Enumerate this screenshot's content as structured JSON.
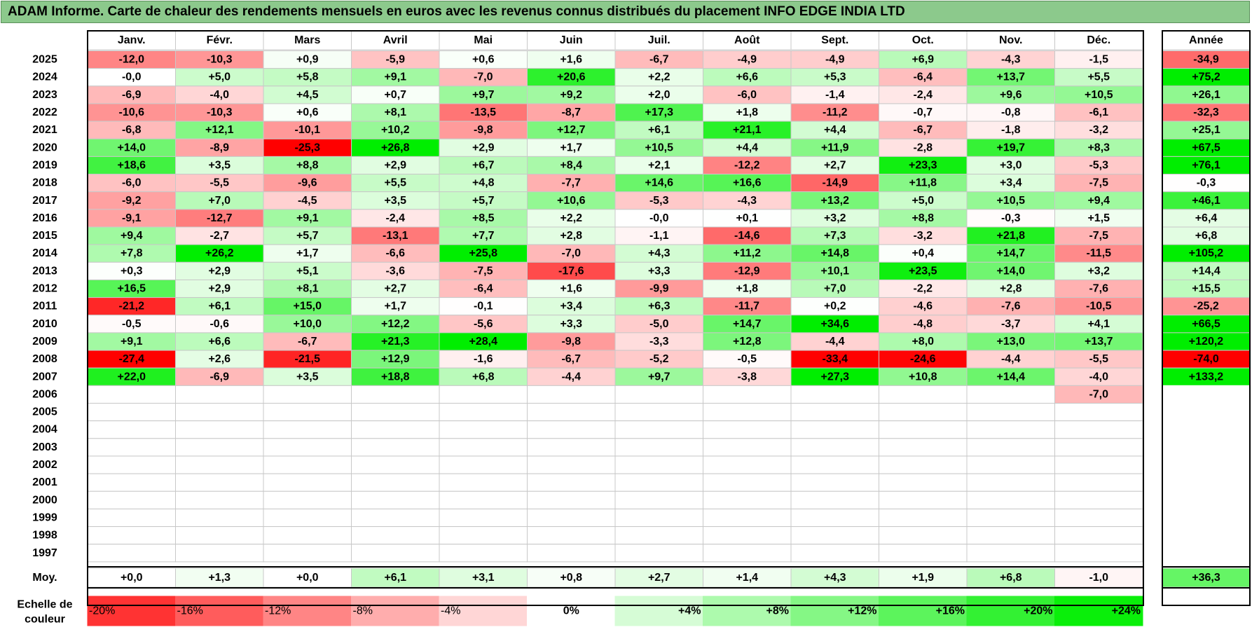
{
  "title": "ADAM Informe. Carte de chaleur des rendements mensuels en euros avec les revenus connus distribués du placement INFO EDGE INDIA LTD",
  "colors": {
    "title_bg": "#8cc98c",
    "red": "#ff0000",
    "green": "#00ee00",
    "neutral": "#ffffff"
  },
  "chart_data": {
    "type": "heatmap",
    "months": [
      "Janv.",
      "Févr.",
      "Mars",
      "Avril",
      "Mai",
      "Juin",
      "Juil.",
      "Août",
      "Sept.",
      "Oct.",
      "Nov.",
      "Déc."
    ],
    "year_header": "Année",
    "years": [
      "2025",
      "2024",
      "2023",
      "2022",
      "2021",
      "2020",
      "2019",
      "2018",
      "2017",
      "2016",
      "2015",
      "2014",
      "2013",
      "2012",
      "2011",
      "2010",
      "2009",
      "2008",
      "2007",
      "2006",
      "2005",
      "2004",
      "2003",
      "2002",
      "2001",
      "2000",
      "1999",
      "1998",
      "1997"
    ],
    "values": [
      [
        "-12,0",
        "-10,3",
        "+0,9",
        "-5,9",
        "+0,6",
        "+1,6",
        "-6,7",
        "-4,9",
        "-4,9",
        "+6,9",
        "-4,3",
        "-1,5"
      ],
      [
        "-0,0",
        "+5,0",
        "+5,8",
        "+9,1",
        "-7,0",
        "+20,6",
        "+2,2",
        "+6,6",
        "+5,3",
        "-6,4",
        "+13,7",
        "+5,5"
      ],
      [
        "-6,9",
        "-4,0",
        "+4,5",
        "+0,7",
        "+9,7",
        "+9,2",
        "+2,0",
        "-6,0",
        "-1,4",
        "-2,4",
        "+9,6",
        "+10,5"
      ],
      [
        "-10,6",
        "-10,3",
        "+0,6",
        "+8,1",
        "-13,5",
        "-8,7",
        "+17,3",
        "+1,8",
        "-11,2",
        "-0,7",
        "-0,8",
        "-6,1"
      ],
      [
        "-6,8",
        "+12,1",
        "-10,1",
        "+10,2",
        "-9,8",
        "+12,7",
        "+6,1",
        "+21,1",
        "+4,4",
        "-6,7",
        "-1,8",
        "-3,2"
      ],
      [
        "+14,0",
        "-8,9",
        "-25,3",
        "+26,8",
        "+2,9",
        "+1,7",
        "+10,5",
        "+4,4",
        "+11,9",
        "-2,8",
        "+19,7",
        "+8,3"
      ],
      [
        "+18,6",
        "+3,5",
        "+8,8",
        "+2,9",
        "+6,7",
        "+8,4",
        "+2,1",
        "-12,2",
        "+2,7",
        "+23,3",
        "+3,0",
        "-5,3"
      ],
      [
        "-6,0",
        "-5,5",
        "-9,6",
        "+5,5",
        "+4,8",
        "-7,7",
        "+14,6",
        "+16,6",
        "-14,9",
        "+11,8",
        "+3,4",
        "-7,5"
      ],
      [
        "-9,2",
        "+7,0",
        "-4,5",
        "+3,5",
        "+5,7",
        "+10,6",
        "-5,3",
        "-4,3",
        "+13,2",
        "+5,0",
        "+10,5",
        "+9,4"
      ],
      [
        "-9,1",
        "-12,7",
        "+9,1",
        "-2,4",
        "+8,5",
        "+2,2",
        "-0,0",
        "+0,1",
        "+3,2",
        "+8,8",
        "-0,3",
        "+1,5"
      ],
      [
        "+9,4",
        "-2,7",
        "+5,7",
        "-13,1",
        "+7,7",
        "+2,8",
        "-1,1",
        "-14,6",
        "+7,3",
        "-3,2",
        "+21,8",
        "-7,5"
      ],
      [
        "+7,8",
        "+26,2",
        "+1,7",
        "-6,6",
        "+25,8",
        "-7,0",
        "+4,3",
        "+11,2",
        "+14,8",
        "+0,4",
        "+14,7",
        "-11,5"
      ],
      [
        "+0,3",
        "+2,9",
        "+5,1",
        "-3,6",
        "-7,5",
        "-17,6",
        "+3,3",
        "-12,9",
        "+10,1",
        "+23,5",
        "+14,0",
        "+3,2"
      ],
      [
        "+16,5",
        "+2,9",
        "+8,1",
        "+2,7",
        "-6,4",
        "+1,6",
        "-9,9",
        "+1,8",
        "+7,0",
        "-2,2",
        "+2,8",
        "-7,6"
      ],
      [
        "-21,2",
        "+6,1",
        "+15,0",
        "+1,7",
        "-0,1",
        "+3,4",
        "+6,3",
        "-11,7",
        "+0,2",
        "-4,6",
        "-7,6",
        "-10,5"
      ],
      [
        "-0,5",
        "-0,6",
        "+10,0",
        "+12,2",
        "-5,6",
        "+3,3",
        "-5,0",
        "+14,7",
        "+34,6",
        "-4,8",
        "-3,7",
        "+4,1"
      ],
      [
        "+9,1",
        "+6,6",
        "-6,7",
        "+21,3",
        "+28,4",
        "-9,8",
        "-3,3",
        "+12,8",
        "-4,4",
        "+8,0",
        "+13,0",
        "+13,7"
      ],
      [
        "-27,4",
        "+2,6",
        "-21,5",
        "+12,9",
        "-1,6",
        "-6,7",
        "-5,2",
        "-0,5",
        "-33,4",
        "-24,6",
        "-4,4",
        "-5,5"
      ],
      [
        "+22,0",
        "-6,9",
        "+3,5",
        "+18,8",
        "+6,8",
        "-4,4",
        "+9,7",
        "-3,8",
        "+27,3",
        "+10,8",
        "+14,4",
        "-4,0"
      ],
      [
        "",
        "",
        "",
        "",
        "",
        "",
        "",
        "",
        "",
        "",
        "",
        "-7,0"
      ],
      [
        "",
        "",
        "",
        "",
        "",
        "",
        "",
        "",
        "",
        "",
        "",
        ""
      ],
      [
        "",
        "",
        "",
        "",
        "",
        "",
        "",
        "",
        "",
        "",
        "",
        ""
      ],
      [
        "",
        "",
        "",
        "",
        "",
        "",
        "",
        "",
        "",
        "",
        "",
        ""
      ],
      [
        "",
        "",
        "",
        "",
        "",
        "",
        "",
        "",
        "",
        "",
        "",
        ""
      ],
      [
        "",
        "",
        "",
        "",
        "",
        "",
        "",
        "",
        "",
        "",
        "",
        ""
      ],
      [
        "",
        "",
        "",
        "",
        "",
        "",
        "",
        "",
        "",
        "",
        "",
        ""
      ],
      [
        "",
        "",
        "",
        "",
        "",
        "",
        "",
        "",
        "",
        "",
        "",
        ""
      ],
      [
        "",
        "",
        "",
        "",
        "",
        "",
        "",
        "",
        "",
        "",
        "",
        ""
      ],
      [
        "",
        "",
        "",
        "",
        "",
        "",
        "",
        "",
        "",
        "",
        "",
        ""
      ]
    ],
    "annual": [
      "-34,9",
      "+75,2",
      "+26,1",
      "-32,3",
      "+25,1",
      "+67,5",
      "+76,1",
      "-0,3",
      "+46,1",
      "+6,4",
      "+6,8",
      "+105,2",
      "+14,4",
      "+15,5",
      "-25,2",
      "+66,5",
      "+120,2",
      "-74,0",
      "+133,2",
      "",
      "",
      "",
      "",
      "",
      "",
      "",
      "",
      "",
      ""
    ],
    "average_label": "Moy.",
    "average": [
      "+0,0",
      "+1,3",
      "+0,0",
      "+6,1",
      "+3,1",
      "+0,8",
      "+2,7",
      "+1,4",
      "+4,3",
      "+1,9",
      "+6,8",
      "-1,0"
    ],
    "average_annual": "+36,3",
    "scale_label": [
      "Echelle de",
      "couleur"
    ],
    "scale_steps": [
      "-20%",
      "-16%",
      "-12%",
      "-8%",
      "-4%",
      "0%",
      "+4%",
      "+8%",
      "+12%",
      "+16%",
      "+20%",
      "+24%"
    ],
    "scale_values": [
      -20,
      -16,
      -12,
      -8,
      -4,
      0,
      4,
      8,
      12,
      16,
      20,
      24
    ],
    "scale_range": [
      -25,
      25
    ]
  }
}
